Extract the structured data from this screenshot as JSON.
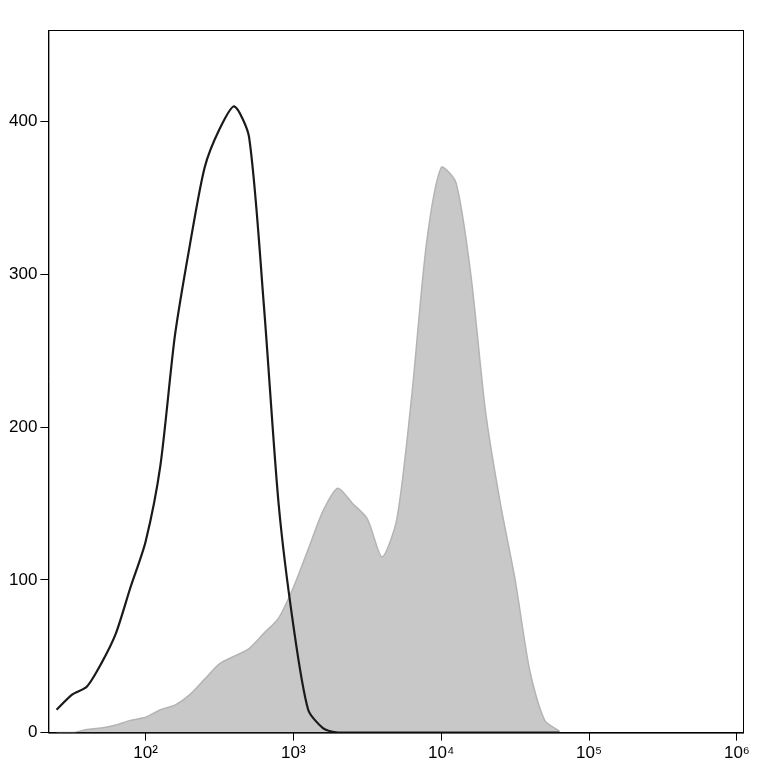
{
  "chart_data": {
    "type": "line",
    "log": "x",
    "grid": false,
    "x": [
      25,
      32,
      40,
      50,
      63,
      79,
      100,
      126,
      158,
      200,
      251,
      316,
      398,
      501,
      631,
      794,
      1000,
      1259,
      1585,
      1995,
      2512,
      3162,
      3981,
      5012,
      6310,
      7943,
      10000,
      12589,
      15849,
      19953,
      25119,
      31623,
      39811,
      50119,
      63096
    ],
    "series": [
      {
        "color": "#c8c8c8",
        "type": "area",
        "values": [
          0,
          0,
          2,
          3,
          5,
          8,
          10,
          15,
          18,
          25,
          35,
          45,
          50,
          55,
          65,
          75,
          95,
          120,
          145,
          160,
          150,
          140,
          115,
          140,
          220,
          320,
          370,
          360,
          300,
          210,
          150,
          100,
          40,
          8,
          1
        ]
      },
      {
        "color": "#1a1a1a",
        "type": "line",
        "values": [
          15,
          25,
          30,
          45,
          65,
          95,
          125,
          175,
          260,
          320,
          370,
          395,
          410,
          390,
          280,
          150,
          70,
          15,
          3,
          0,
          0,
          0,
          0,
          0,
          0,
          0,
          0,
          0,
          0,
          0,
          0,
          0,
          0,
          0,
          0
        ]
      }
    ],
    "xlim": [
      22,
      1100000
    ],
    "xticks": [
      {
        "value": 100,
        "label": "10²"
      },
      {
        "value": 1000,
        "label": "10³"
      },
      {
        "value": 10000,
        "label": "10⁴"
      },
      {
        "value": 100000,
        "label": "10⁵"
      },
      {
        "value": 1000000,
        "label": "10⁶"
      }
    ],
    "ylim": [
      0,
      460
    ],
    "yticks": [
      0,
      100,
      200,
      300,
      400
    ]
  }
}
